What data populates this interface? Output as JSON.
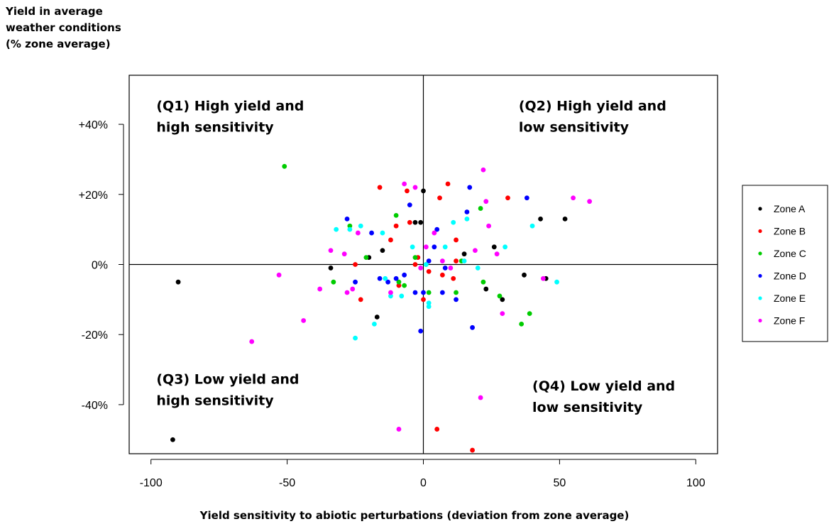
{
  "chart_data": {
    "type": "scatter",
    "ylabel_lines": [
      "Yield in average",
      "weather conditions",
      "(% zone average)"
    ],
    "xlabel": "Yield sensitivity to abiotic perturbations (deviation from zone average)",
    "xlim": [
      -108,
      108
    ],
    "ylim": [
      -54,
      54
    ],
    "x_ticks": [
      -100,
      -50,
      0,
      50,
      100
    ],
    "x_tick_labels": [
      "-100",
      "-50",
      "0",
      "50",
      "100"
    ],
    "y_ticks": [
      40,
      20,
      0,
      -20,
      -40
    ],
    "y_tick_labels": [
      "+40%",
      "+20%",
      "0%",
      "-20%",
      "-40%"
    ],
    "grid": false,
    "reference_lines": {
      "x": 0,
      "y": 0
    },
    "legend_position": "right",
    "quadrant_labels": [
      {
        "lines": [
          "(Q1) High yield and",
          "high sensitivity"
        ],
        "x": -98,
        "y": 44
      },
      {
        "lines": [
          "(Q2) High yield and",
          "low sensitivity"
        ],
        "x": 35,
        "y": 44
      },
      {
        "lines": [
          "(Q3) Low yield and",
          "high sensitivity"
        ],
        "x": -98,
        "y": -34
      },
      {
        "lines": [
          "(Q4) Low yield and",
          "low sensitivity"
        ],
        "x": 40,
        "y": -36
      }
    ],
    "series": [
      {
        "name": "Zone A",
        "color": "#000000",
        "points": [
          [
            -90,
            -5
          ],
          [
            -92,
            -50
          ],
          [
            -34,
            -1
          ],
          [
            -20,
            2
          ],
          [
            -17,
            -15
          ],
          [
            -15,
            4
          ],
          [
            -3,
            12
          ],
          [
            -1,
            12
          ],
          [
            0,
            21
          ],
          [
            15,
            3
          ],
          [
            23,
            -7
          ],
          [
            26,
            5
          ],
          [
            29,
            -10
          ],
          [
            37,
            -3
          ],
          [
            43,
            13
          ],
          [
            45,
            -4
          ],
          [
            52,
            13
          ]
        ]
      },
      {
        "name": "Zone B",
        "color": "#ff0000",
        "points": [
          [
            -16,
            22
          ],
          [
            -23,
            -10
          ],
          [
            -25,
            0
          ],
          [
            -12,
            7
          ],
          [
            -10,
            11
          ],
          [
            -9,
            -6
          ],
          [
            -6,
            21
          ],
          [
            -5,
            12
          ],
          [
            -3,
            0
          ],
          [
            -2,
            2
          ],
          [
            0,
            -10
          ],
          [
            2,
            -2
          ],
          [
            5,
            -47
          ],
          [
            6,
            19
          ],
          [
            7,
            -3
          ],
          [
            9,
            23
          ],
          [
            11,
            -4
          ],
          [
            12,
            7
          ],
          [
            12,
            1
          ],
          [
            18,
            -53
          ],
          [
            31,
            19
          ]
        ]
      },
      {
        "name": "Zone C",
        "color": "#00cc00",
        "points": [
          [
            -51,
            28
          ],
          [
            -33,
            -5
          ],
          [
            -27,
            11
          ],
          [
            -21,
            2
          ],
          [
            -10,
            14
          ],
          [
            -9,
            -5
          ],
          [
            -7,
            -6
          ],
          [
            -3,
            2
          ],
          [
            1,
            0
          ],
          [
            2,
            -8
          ],
          [
            12,
            -8
          ],
          [
            14,
            1
          ],
          [
            21,
            16
          ],
          [
            22,
            -5
          ],
          [
            28,
            -9
          ],
          [
            36,
            -17
          ],
          [
            39,
            -14
          ]
        ]
      },
      {
        "name": "Zone D",
        "color": "#0000ff",
        "points": [
          [
            -28,
            13
          ],
          [
            -25,
            -5
          ],
          [
            -19,
            9
          ],
          [
            -16,
            -4
          ],
          [
            -13,
            -5
          ],
          [
            -10,
            -4
          ],
          [
            -7,
            -3
          ],
          [
            -5,
            17
          ],
          [
            -3,
            -8
          ],
          [
            -1,
            -19
          ],
          [
            0,
            -8
          ],
          [
            2,
            1
          ],
          [
            4,
            5
          ],
          [
            5,
            10
          ],
          [
            7,
            -8
          ],
          [
            8,
            -1
          ],
          [
            12,
            -10
          ],
          [
            16,
            15
          ],
          [
            17,
            22
          ],
          [
            18,
            -18
          ],
          [
            38,
            19
          ]
        ]
      },
      {
        "name": "Zone E",
        "color": "#00ffff",
        "points": [
          [
            -32,
            10
          ],
          [
            -27,
            10
          ],
          [
            -23,
            11
          ],
          [
            -18,
            -17
          ],
          [
            -25,
            -21
          ],
          [
            -15,
            9
          ],
          [
            -14,
            -4
          ],
          [
            -12,
            -9
          ],
          [
            -8,
            -9
          ],
          [
            -4,
            5
          ],
          [
            1,
            0
          ],
          [
            2,
            -11
          ],
          [
            2,
            -12
          ],
          [
            8,
            5
          ],
          [
            11,
            12
          ],
          [
            15,
            1
          ],
          [
            16,
            13
          ],
          [
            20,
            -1
          ],
          [
            30,
            5
          ],
          [
            40,
            11
          ],
          [
            49,
            -5
          ]
        ]
      },
      {
        "name": "Zone F",
        "color": "#ff00ff",
        "points": [
          [
            -63,
            -22
          ],
          [
            -53,
            -3
          ],
          [
            -44,
            -16
          ],
          [
            -38,
            -7
          ],
          [
            -34,
            4
          ],
          [
            -29,
            3
          ],
          [
            -28,
            -8
          ],
          [
            -26,
            -7
          ],
          [
            -24,
            9
          ],
          [
            -12,
            -8
          ],
          [
            -9,
            -47
          ],
          [
            -7,
            23
          ],
          [
            -3,
            22
          ],
          [
            -1,
            -1
          ],
          [
            1,
            5
          ],
          [
            4,
            9
          ],
          [
            7,
            1
          ],
          [
            10,
            -1
          ],
          [
            19,
            4
          ],
          [
            21,
            -38
          ],
          [
            22,
            27
          ],
          [
            23,
            18
          ],
          [
            24,
            11
          ],
          [
            27,
            3
          ],
          [
            29,
            -14
          ],
          [
            44,
            -4
          ],
          [
            55,
            19
          ],
          [
            61,
            18
          ]
        ]
      }
    ]
  }
}
